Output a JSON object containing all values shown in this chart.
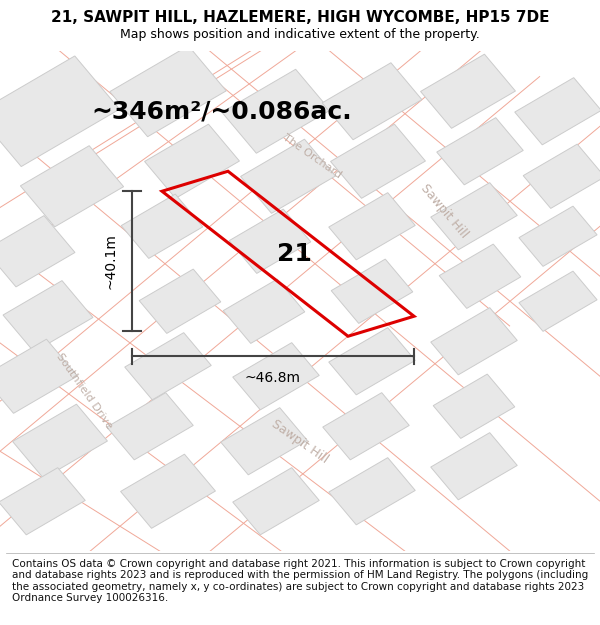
{
  "title": "21, SAWPIT HILL, HAZLEMERE, HIGH WYCOMBE, HP15 7DE",
  "subtitle": "Map shows position and indicative extent of the property.",
  "area_text": "~346m²/~0.086ac.",
  "plot_number": "21",
  "dim_width": "~46.8m",
  "dim_height": "~40.1m",
  "footer": "Contains OS data © Crown copyright and database right 2021. This information is subject to Crown copyright and database rights 2023 and is reproduced with the permission of HM Land Registry. The polygons (including the associated geometry, namely x, y co-ordinates) are subject to Crown copyright and database rights 2023 Ordnance Survey 100026316.",
  "map_bg": "#ffffff",
  "plot_color": "#dd0000",
  "building_fill": "#e8e8e8",
  "building_edge": "#cccccc",
  "road_line_color": "#f0a898",
  "dim_line_color": "#444444",
  "street_label_color": "#c0b0a8",
  "title_fontsize": 11,
  "subtitle_fontsize": 9,
  "footer_fontsize": 7.5,
  "area_fontsize": 18,
  "plot_label_fontsize": 18,
  "dim_fontsize": 10,
  "street_fontsize": 9
}
